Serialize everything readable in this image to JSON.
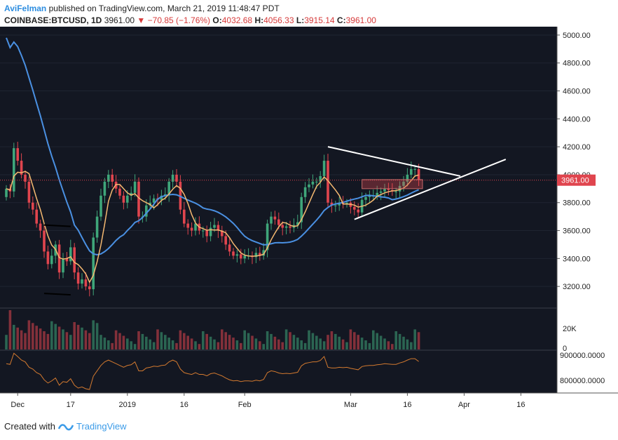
{
  "header": {
    "author": "AviFelman",
    "published_text": "published on TradingView.com, March 21, 2019 11:48:47 PDT",
    "symbol": "COINBASE:BTCUSD, 1D",
    "last": "3961.00",
    "change": "▼ −70.85 (−1.76%)",
    "o_label": "O:",
    "o_value": "4032.68",
    "h_label": "H:",
    "h_value": "4056.33",
    "l_label": "L:",
    "l_value": "3915.14",
    "c_label": "C:",
    "c_value": "3961.00"
  },
  "footer": {
    "created_with": "Created with",
    "brand": "TradingView"
  },
  "colors": {
    "background": "#131722",
    "up": "#3fa67a",
    "down": "#e0454e",
    "ma_fast": "#f5b971",
    "ma_slow": "#4a90e2",
    "osc": "#d2792f",
    "price_tag": "#e0454e",
    "trendline": "#ffffff"
  },
  "chart_data": {
    "type": "candlestick",
    "symbol": "COINBASE:BTCUSD",
    "interval": "1D",
    "x_tick_labels": [
      "Dec",
      "17",
      "2019",
      "16",
      "Feb",
      "Mar",
      "16",
      "Apr",
      "16"
    ],
    "y_tick_labels": [
      "5000.00",
      "4800.00",
      "4600.00",
      "4400.00",
      "4200.00",
      "4000.00",
      "3800.00",
      "3600.00",
      "3400.00",
      "3200.00"
    ],
    "ylim": [
      3050,
      5060
    ],
    "last_price_tag": "3961.00",
    "close": [
      3900,
      3880,
      4190,
      4100,
      4000,
      3950,
      3800,
      3750,
      3650,
      3600,
      3450,
      3360,
      3420,
      3500,
      3300,
      3400,
      3380,
      3480,
      3300,
      3220,
      3250,
      3200,
      3180,
      3550,
      3700,
      3850,
      3950,
      4000,
      3950,
      3900,
      3850,
      3800,
      3850,
      3870,
      3950,
      3700,
      3700,
      3780,
      3800,
      3830,
      3820,
      3850,
      3860,
      3950,
      4000,
      3950,
      3750,
      3650,
      3620,
      3600,
      3650,
      3600,
      3600,
      3560,
      3620,
      3640,
      3600,
      3560,
      3500,
      3450,
      3420,
      3430,
      3400,
      3420,
      3420,
      3410,
      3440,
      3420,
      3460,
      3650,
      3700,
      3680,
      3640,
      3620,
      3630,
      3620,
      3640,
      3660,
      3840,
      3910,
      3930,
      3950,
      3950,
      3990,
      4100,
      3800,
      3780,
      3780,
      3800,
      3790,
      3800,
      3770,
      3750,
      3730,
      3820,
      3840,
      3850,
      3850,
      3870,
      3880,
      3900,
      3890,
      3880,
      3880,
      3920,
      3950,
      4000,
      4040,
      4040,
      3961
    ],
    "volume_axis_labels": [
      "20K",
      "0"
    ],
    "oscillator_axis_labels": [
      "900000.0000",
      "800000.0000"
    ]
  }
}
